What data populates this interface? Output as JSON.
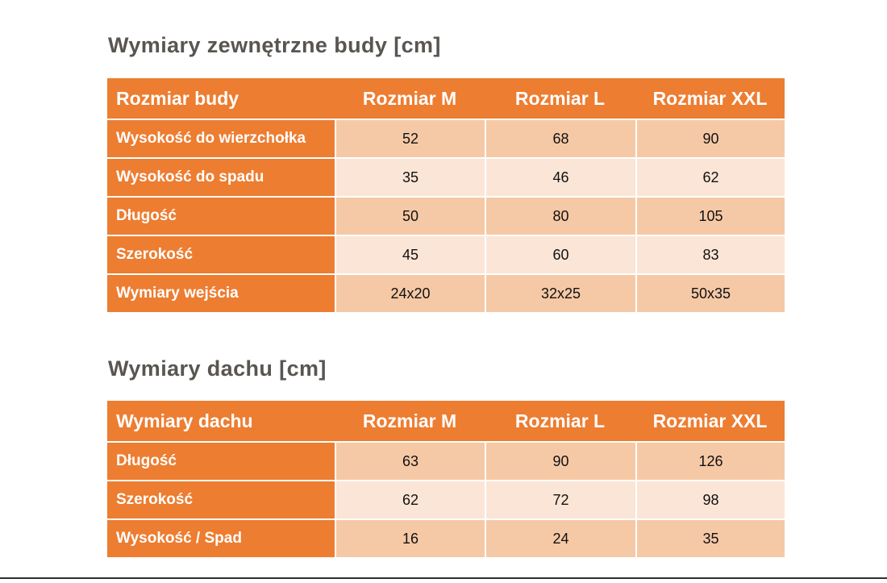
{
  "theme": {
    "page_bg": "#ffffff",
    "accent_orange": "#ED7D31",
    "row_dark": "#F6C9A6",
    "row_light": "#FBE5D6",
    "title_color": "#595551",
    "value_color": "#111111",
    "divider_color": "#2e2e2e"
  },
  "tables": [
    {
      "title": "Wymiary zewnętrzne budy [cm]",
      "header": [
        "Rozmiar budy",
        "Rozmiar M",
        "Rozmiar L",
        "Rozmiar XXL"
      ],
      "rows": [
        {
          "label": "Wysokość do wierzchołka",
          "values": [
            "52",
            "68",
            "90"
          ]
        },
        {
          "label": "Wysokość do spadu",
          "values": [
            "35",
            "46",
            "62"
          ]
        },
        {
          "label": "Długość",
          "values": [
            "50",
            "80",
            "105"
          ]
        },
        {
          "label": "Szerokość",
          "values": [
            "45",
            "60",
            "83"
          ]
        },
        {
          "label": "Wymiary wejścia",
          "values": [
            "24x20",
            "32x25",
            "50x35"
          ]
        }
      ]
    },
    {
      "title": "Wymiary dachu [cm]",
      "header": [
        "Wymiary dachu",
        "Rozmiar M",
        "Rozmiar L",
        "Rozmiar XXL"
      ],
      "rows": [
        {
          "label": "Długość",
          "values": [
            "63",
            "90",
            "126"
          ]
        },
        {
          "label": "Szerokość",
          "values": [
            "62",
            "72",
            "98"
          ]
        },
        {
          "label": "Wysokość / Spad",
          "values": [
            "16",
            "24",
            "35"
          ]
        }
      ]
    }
  ]
}
